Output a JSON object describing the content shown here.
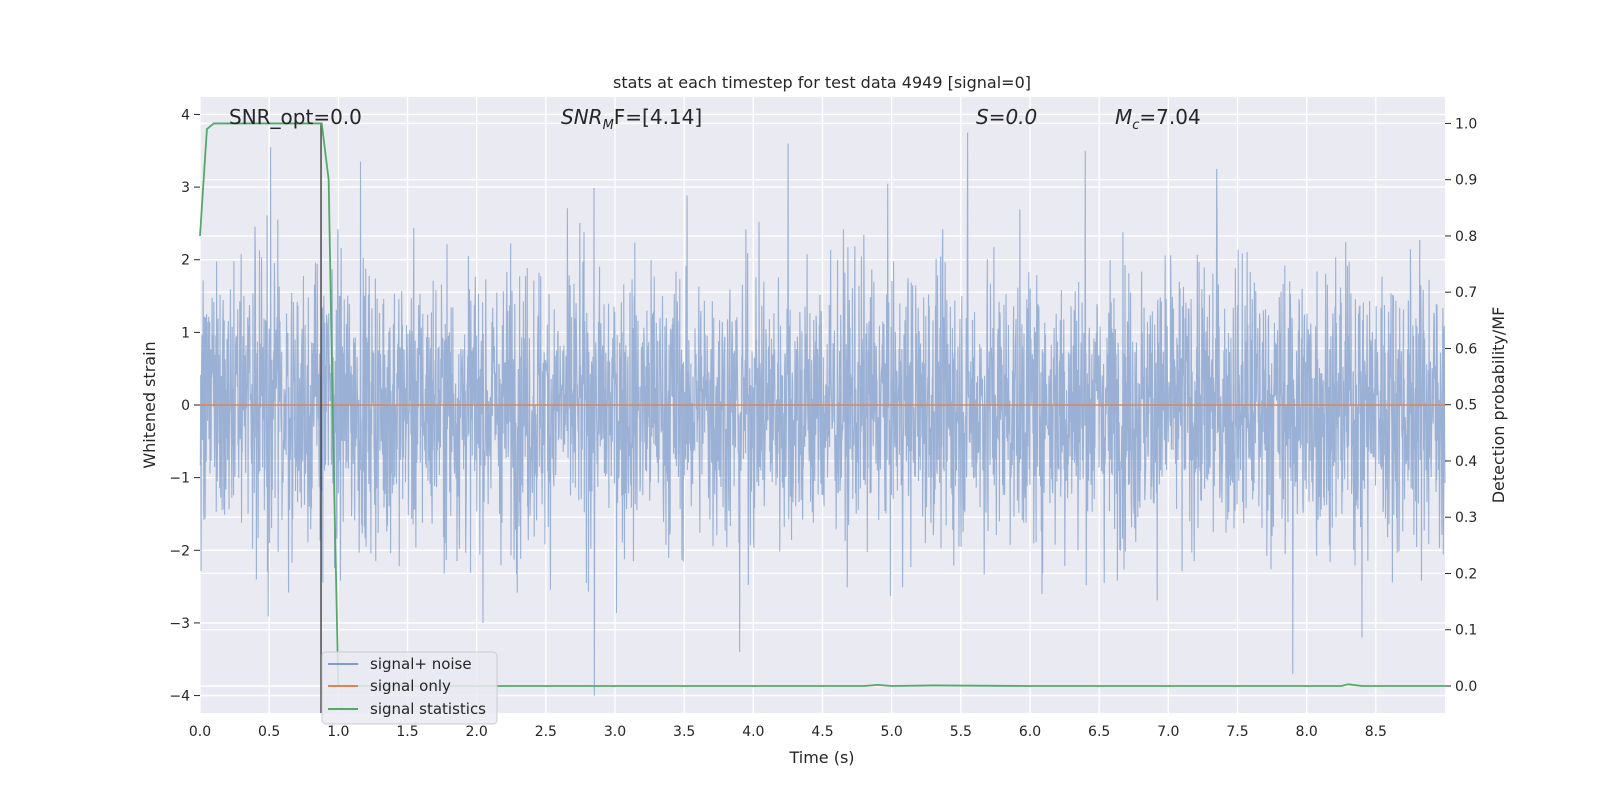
{
  "chart_data": {
    "type": "line",
    "title": "stats at each timestep for test data 4949 [signal=0]",
    "xlabel": "Time (s)",
    "ylabel": "Whitened strain",
    "ylabel_right": "Detection probability/MF",
    "xlim": [
      0.0,
      9.0
    ],
    "ylim": [
      -4.24,
      4.24
    ],
    "ylim_right": [
      -0.048,
      1.047
    ],
    "x_ticks": [
      "0.0",
      "0.5",
      "1.0",
      "1.5",
      "2.0",
      "2.5",
      "3.0",
      "3.5",
      "4.0",
      "4.5",
      "5.0",
      "5.5",
      "6.0",
      "6.5",
      "7.0",
      "7.5",
      "8.0",
      "8.5"
    ],
    "y_ticks": [
      "−4",
      "−3",
      "−2",
      "−1",
      "0",
      "1",
      "2",
      "3",
      "4"
    ],
    "y_ticks_right": [
      "0.0",
      "0.1",
      "0.2",
      "0.3",
      "0.4",
      "0.5",
      "0.6",
      "0.7",
      "0.8",
      "0.9",
      "1.0"
    ],
    "grid": true,
    "legend_position": "lower-left",
    "vertical_marker_x": 0.875,
    "annotations": {
      "snr_opt": "SNR_opt=0.0",
      "snr_mf_prefix": "SNR",
      "snr_mf_sub": "M",
      "snr_mf_suffix": "F=[4.14]",
      "s_label": "S=0.0",
      "mc_prefix": "M",
      "mc_sub": "c",
      "mc_suffix": "=7.04"
    },
    "colors": {
      "signal_noise": "#7f9cc9",
      "signal_only": "#dd8452",
      "signal_statistics": "#55a868",
      "background": "#eaeaf2",
      "grid": "#ffffff",
      "marker": "#404040"
    },
    "series": [
      {
        "name": "signal+ noise",
        "color": "#7f9cc9",
        "description_envelope": [
          -3.3,
          3.6
        ],
        "noise_std": 0.95,
        "notable_peaks": [
          {
            "x": 0.51,
            "y": 3.55
          },
          {
            "x": 1.16,
            "y": 3.35
          },
          {
            "x": 2.85,
            "y": 3.25
          },
          {
            "x": 4.25,
            "y": 3.6
          },
          {
            "x": 5.55,
            "y": 3.75
          },
          {
            "x": 6.4,
            "y": 3.5
          },
          {
            "x": 7.35,
            "y": 3.25
          },
          {
            "x": 2.85,
            "y": -4.0
          },
          {
            "x": 3.9,
            "y": -3.4
          },
          {
            "x": 7.9,
            "y": -3.7
          },
          {
            "x": 8.4,
            "y": -3.2
          }
        ]
      },
      {
        "name": "signal only",
        "color": "#dd8452",
        "x": [
          0.0,
          9.0
        ],
        "y": [
          0.0,
          0.0
        ]
      },
      {
        "name": "signal statistics",
        "color": "#55a868",
        "axis": "right",
        "x": [
          0.0,
          0.05,
          0.1,
          0.2,
          0.3,
          0.5,
          0.7,
          0.85,
          0.88,
          0.93,
          0.97,
          1.0,
          1.05,
          1.5,
          2.0,
          3.0,
          4.0,
          4.8,
          4.9,
          5.0,
          5.3,
          6.0,
          7.0,
          8.0,
          8.25,
          8.3,
          8.4,
          9.0
        ],
        "y": [
          0.8,
          0.99,
          1.0,
          1.0,
          1.0,
          1.0,
          1.0,
          1.0,
          1.0,
          0.9,
          0.35,
          0.0,
          0.0,
          0.0,
          0.0,
          0.0,
          0.0,
          0.0,
          0.002,
          0.0,
          0.001,
          0.0,
          0.0,
          0.0,
          0.0,
          0.003,
          0.0,
          0.0
        ]
      }
    ]
  }
}
